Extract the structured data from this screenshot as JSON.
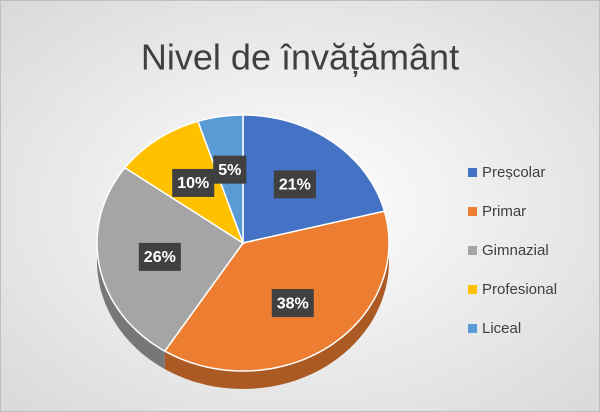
{
  "chart_data": {
    "type": "pie",
    "title": "Nivel de învățământ",
    "categories": [
      "Preșcolar",
      "Primar",
      "Gimnazial",
      "Profesional",
      "Liceal"
    ],
    "values": [
      21,
      38,
      26,
      10,
      5
    ],
    "value_labels": [
      "21%",
      "38%",
      "26%",
      "10%",
      "5%"
    ],
    "colors": [
      "#4472c4",
      "#ed7d31",
      "#a5a5a5",
      "#ffc000",
      "#5b9bd5"
    ],
    "legend": "right"
  }
}
